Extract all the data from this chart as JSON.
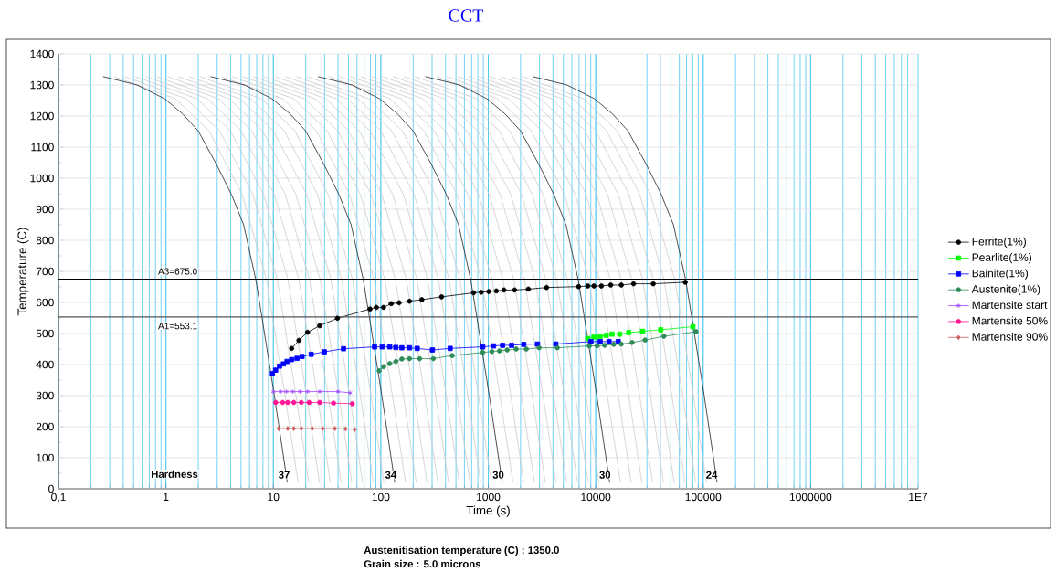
{
  "chart_data": {
    "type": "line",
    "title": "CCT",
    "xlabel": "Time (s)",
    "ylabel": "Temperature (C)",
    "log": "x",
    "grid": true,
    "legend": "right",
    "xlim": [
      0.1,
      10000000
    ],
    "ylim": [
      0,
      1400
    ],
    "xticks": [
      {
        "value": 0.1,
        "label": "0,1"
      },
      1,
      10,
      100,
      1000,
      10000,
      100000,
      1000000,
      {
        "value": 10000000,
        "label": "1E7"
      }
    ],
    "yticks": [
      0,
      100,
      200,
      300,
      400,
      500,
      600,
      700,
      800,
      900,
      1000,
      1100,
      1200,
      1300,
      1400
    ],
    "ref_lines": [
      {
        "axis": "y",
        "value": 675.0,
        "label": "A3=675.0",
        "color": "#000000"
      },
      {
        "axis": "y",
        "value": 553.1,
        "label": "A1=553.1",
        "color": "#555555"
      }
    ],
    "annotations": [
      "Hardness",
      {
        "text": "37",
        "x": 12.6,
        "y": 45
      },
      {
        "text": "34",
        "x": 124,
        "y": 45
      },
      {
        "text": "30",
        "x": 1240,
        "y": 45
      },
      {
        "text": "30",
        "x": 12200,
        "y": 45
      },
      {
        "text": "24",
        "x": 120000,
        "y": 45
      },
      "Austenitisation temperature (C) : 1350.0",
      "Grain size : 5.0 microns"
    ],
    "series": [
      {
        "color": "#cccccc",
        "marker": "none",
        "x": [
          0.327,
          1.22,
          2.51,
          5.12,
          8.65,
          12.8,
          17.0
        ],
        "values": [
          1327,
          1256,
          1153,
          948,
          673,
          302,
          20
        ]
      },
      {
        "color": "#cccccc",
        "marker": "none",
        "x": [
          0.412,
          1.54,
          3.15,
          6.45,
          10.9,
          16.2,
          21.4
        ],
        "values": [
          1327,
          1256,
          1153,
          948,
          673,
          302,
          20
        ]
      },
      {
        "color": "#cccccc",
        "marker": "none",
        "x": [
          0.519,
          1.94,
          3.97,
          8.12,
          13.7,
          20.3,
          26.9
        ],
        "values": [
          1327,
          1256,
          1153,
          948,
          673,
          302,
          20
        ]
      },
      {
        "color": "#cccccc",
        "marker": "none",
        "x": [
          0.653,
          2.44,
          5.0,
          10.2,
          17.3,
          25.6,
          33.9
        ],
        "values": [
          1327,
          1256,
          1153,
          948,
          673,
          302,
          20
        ]
      },
      {
        "color": "#cccccc",
        "marker": "none",
        "x": [
          0.822,
          3.07,
          6.29,
          12.9,
          21.7,
          32.3,
          42.7
        ],
        "values": [
          1327,
          1256,
          1153,
          948,
          673,
          302,
          20
        ]
      },
      {
        "color": "#cccccc",
        "marker": "none",
        "x": [
          1.04,
          3.86,
          7.92,
          16.2,
          27.3,
          40.6,
          53.7
        ],
        "values": [
          1327,
          1256,
          1153,
          948,
          673,
          302,
          20
        ]
      },
      {
        "color": "#cccccc",
        "marker": "none",
        "x": [
          1.3,
          4.86,
          9.97,
          20.4,
          34.4,
          51.1,
          67.7
        ],
        "values": [
          1327,
          1256,
          1153,
          948,
          673,
          302,
          20
        ]
      },
      {
        "color": "#cccccc",
        "marker": "none",
        "x": [
          1.64,
          6.12,
          12.6,
          25.7,
          43.3,
          64.4,
          85.2
        ],
        "values": [
          1327,
          1256,
          1153,
          948,
          673,
          302,
          20
        ]
      },
      {
        "color": "#cccccc",
        "marker": "none",
        "x": [
          2.07,
          7.7,
          15.8,
          32.3,
          54.6,
          81.0,
          107
        ],
        "values": [
          1327,
          1256,
          1153,
          948,
          673,
          302,
          20
        ]
      },
      {
        "color": "#cccccc",
        "marker": "none",
        "x": [
          3.27,
          12.2,
          25.1,
          51.2,
          86.5,
          128,
          170
        ],
        "values": [
          1327,
          1256,
          1153,
          948,
          673,
          302,
          20
        ]
      },
      {
        "color": "#cccccc",
        "marker": "none",
        "x": [
          4.12,
          15.4,
          31.5,
          64.5,
          109,
          162,
          214
        ],
        "values": [
          1327,
          1256,
          1153,
          948,
          673,
          302,
          20
        ]
      },
      {
        "color": "#cccccc",
        "marker": "none",
        "x": [
          5.19,
          19.4,
          39.7,
          81.2,
          137,
          203,
          269
        ],
        "values": [
          1327,
          1256,
          1153,
          948,
          673,
          302,
          20
        ]
      },
      {
        "color": "#cccccc",
        "marker": "none",
        "x": [
          6.53,
          24.4,
          50.0,
          102,
          173,
          256,
          339
        ],
        "values": [
          1327,
          1256,
          1153,
          948,
          673,
          302,
          20
        ]
      },
      {
        "color": "#cccccc",
        "marker": "none",
        "x": [
          8.22,
          30.7,
          62.9,
          129,
          217,
          323,
          427
        ],
        "values": [
          1327,
          1256,
          1153,
          948,
          673,
          302,
          20
        ]
      },
      {
        "color": "#cccccc",
        "marker": "none",
        "x": [
          10.4,
          38.6,
          79.2,
          162,
          273,
          406,
          537
        ],
        "values": [
          1327,
          1256,
          1153,
          948,
          673,
          302,
          20
        ]
      },
      {
        "color": "#cccccc",
        "marker": "none",
        "x": [
          13.0,
          48.6,
          99.7,
          204,
          344,
          511,
          677
        ],
        "values": [
          1327,
          1256,
          1153,
          948,
          673,
          302,
          20
        ]
      },
      {
        "color": "#cccccc",
        "marker": "none",
        "x": [
          16.4,
          61.2,
          126,
          257,
          433,
          644,
          852
        ],
        "values": [
          1327,
          1256,
          1153,
          948,
          673,
          302,
          20
        ]
      },
      {
        "color": "#cccccc",
        "marker": "none",
        "x": [
          20.7,
          77.0,
          158,
          323,
          546,
          810,
          1070
        ],
        "values": [
          1327,
          1256,
          1153,
          948,
          673,
          302,
          20
        ]
      },
      {
        "color": "#cccccc",
        "marker": "none",
        "x": [
          32.7,
          122,
          251,
          512,
          865,
          1280,
          1700
        ],
        "values": [
          1327,
          1256,
          1153,
          948,
          673,
          302,
          20
        ]
      },
      {
        "color": "#cccccc",
        "marker": "none",
        "x": [
          41.2,
          154,
          315,
          645,
          1090,
          1620,
          2140
        ],
        "values": [
          1327,
          1256,
          1153,
          948,
          673,
          302,
          20
        ]
      },
      {
        "color": "#cccccc",
        "marker": "none",
        "x": [
          51.9,
          194,
          397,
          812,
          1370,
          2030,
          2690
        ],
        "values": [
          1327,
          1256,
          1153,
          948,
          673,
          302,
          20
        ]
      },
      {
        "color": "#cccccc",
        "marker": "none",
        "x": [
          65.3,
          244,
          500,
          1020,
          1730,
          2560,
          3390
        ],
        "values": [
          1327,
          1256,
          1153,
          948,
          673,
          302,
          20
        ]
      },
      {
        "color": "#cccccc",
        "marker": "none",
        "x": [
          82.2,
          307,
          629,
          1290,
          2170,
          3230,
          4270
        ],
        "values": [
          1327,
          1256,
          1153,
          948,
          673,
          302,
          20
        ]
      },
      {
        "color": "#cccccc",
        "marker": "none",
        "x": [
          104,
          386,
          792,
          1620,
          2730,
          4060,
          5370
        ],
        "values": [
          1327,
          1256,
          1153,
          948,
          673,
          302,
          20
        ]
      },
      {
        "color": "#cccccc",
        "marker": "none",
        "x": [
          130,
          486,
          997,
          2040,
          3440,
          5110,
          6770
        ],
        "values": [
          1327,
          1256,
          1153,
          948,
          673,
          302,
          20
        ]
      },
      {
        "color": "#cccccc",
        "marker": "none",
        "x": [
          164,
          612,
          1260,
          2570,
          4330,
          6440,
          8520
        ],
        "values": [
          1327,
          1256,
          1153,
          948,
          673,
          302,
          20
        ]
      },
      {
        "color": "#cccccc",
        "marker": "none",
        "x": [
          207,
          770,
          1580,
          3230,
          5460,
          8100,
          10700
        ],
        "values": [
          1327,
          1256,
          1153,
          948,
          673,
          302,
          20
        ]
      },
      {
        "color": "#cccccc",
        "marker": "none",
        "x": [
          327,
          1220,
          2510,
          5120,
          8650,
          12800,
          17000
        ],
        "values": [
          1327,
          1256,
          1153,
          948,
          673,
          302,
          20
        ]
      },
      {
        "color": "#cccccc",
        "marker": "none",
        "x": [
          412,
          1540,
          3150,
          6450,
          10900,
          16200,
          21400
        ],
        "values": [
          1327,
          1256,
          1153,
          948,
          673,
          302,
          20
        ]
      },
      {
        "color": "#cccccc",
        "marker": "none",
        "x": [
          519,
          1940,
          3970,
          8120,
          13700,
          20300,
          26900
        ],
        "values": [
          1327,
          1256,
          1153,
          948,
          673,
          302,
          20
        ]
      },
      {
        "color": "#cccccc",
        "marker": "none",
        "x": [
          653,
          2440,
          5000,
          10200,
          17300,
          25600,
          33900
        ],
        "values": [
          1327,
          1256,
          1153,
          948,
          673,
          302,
          20
        ]
      },
      {
        "color": "#cccccc",
        "marker": "none",
        "x": [
          822,
          3070,
          6290,
          12900,
          21700,
          32300,
          42700
        ],
        "values": [
          1327,
          1256,
          1153,
          948,
          673,
          302,
          20
        ]
      },
      {
        "color": "#cccccc",
        "marker": "none",
        "x": [
          1040,
          3860,
          7920,
          16200,
          27300,
          40600,
          53700
        ],
        "values": [
          1327,
          1256,
          1153,
          948,
          673,
          302,
          20
        ]
      },
      {
        "color": "#cccccc",
        "marker": "none",
        "x": [
          1300,
          4860,
          9970,
          20400,
          34400,
          51100,
          67700
        ],
        "values": [
          1327,
          1256,
          1153,
          948,
          673,
          302,
          20
        ]
      },
      {
        "color": "#cccccc",
        "marker": "none",
        "x": [
          1640,
          6120,
          12600,
          25700,
          43300,
          64400,
          85200
        ],
        "values": [
          1327,
          1256,
          1153,
          948,
          673,
          302,
          20
        ]
      },
      {
        "color": "#cccccc",
        "marker": "none",
        "x": [
          2070,
          7700,
          15800,
          32300,
          54600,
          81000,
          107000
        ],
        "values": [
          1327,
          1256,
          1153,
          948,
          673,
          302,
          20
        ]
      },
      {
        "color": "#222222",
        "marker": "none",
        "x": [
          0.26,
          0.54,
          0.97,
          1.43,
          1.99,
          2.94,
          4.07,
          5.29,
          6.87,
          7.8,
          10.2,
          13.5
        ],
        "values": [
          1327,
          1300,
          1256,
          1207,
          1153,
          1046,
          948,
          850,
          673,
          556,
          302,
          20
        ]
      },
      {
        "color": "#222222",
        "marker": "none",
        "x": [
          2.6,
          5.4,
          9.7,
          14.3,
          19.9,
          29.4,
          40.7,
          52.9,
          68.7,
          78,
          102,
          135
        ],
        "values": [
          1327,
          1300,
          1256,
          1207,
          1153,
          1046,
          948,
          850,
          673,
          556,
          302,
          20
        ]
      },
      {
        "color": "#222222",
        "marker": "none",
        "x": [
          26,
          54,
          97,
          143,
          199,
          294,
          407,
          529,
          687,
          780,
          1020,
          1350
        ],
        "values": [
          1327,
          1300,
          1256,
          1207,
          1153,
          1046,
          948,
          850,
          673,
          556,
          302,
          20
        ]
      },
      {
        "color": "#222222",
        "marker": "none",
        "x": [
          260,
          540,
          970,
          1430,
          1990,
          2940,
          4070,
          5290,
          6870,
          7800,
          10200,
          13500
        ],
        "values": [
          1327,
          1300,
          1256,
          1207,
          1153,
          1046,
          948,
          850,
          673,
          556,
          302,
          20
        ]
      },
      {
        "color": "#222222",
        "marker": "none",
        "x": [
          2600,
          5400,
          9700,
          14300,
          19900,
          29400,
          40700,
          52900,
          68700,
          78000,
          102000,
          135000
        ],
        "values": [
          1327,
          1300,
          1256,
          1207,
          1153,
          1046,
          948,
          850,
          673,
          556,
          302,
          20
        ]
      },
      {
        "name": "Ferrite(1%)",
        "color": "#000000",
        "marker": "circle",
        "x": [
          14.8,
          17.3,
          20.8,
          27.0,
          39.5,
          79.4,
          90.6,
          106,
          125,
          148,
          185,
          241,
          368,
          730,
          860,
          1010,
          1190,
          1400,
          1760,
          2360,
          3490,
          6930,
          8430,
          9620,
          11300,
          13800,
          17300,
          22500,
          34300,
          68100
        ],
        "values": [
          452,
          478,
          504,
          525,
          549,
          579,
          584,
          584,
          596,
          599,
          604,
          609,
          618,
          631,
          633,
          635,
          637,
          640,
          640,
          643,
          648,
          651,
          653,
          653,
          653,
          656,
          656,
          660,
          660,
          665
        ]
      },
      {
        "name": "Pearlite(1%)",
        "color": "#00ff00",
        "marker": "square",
        "x": [
          8430,
          9620,
          11000,
          12500,
          14200,
          16700,
          20300,
          27300,
          40300,
          80200
        ],
        "values": [
          484,
          488,
          491,
          494,
          498,
          498,
          503,
          507,
          512,
          522
        ]
      },
      {
        "name": "Bainite(1%)",
        "color": "#0000ff",
        "marker": "square",
        "x": [
          9.8,
          10.5,
          11.4,
          12.4,
          13.4,
          14.8,
          16.6,
          18.5,
          22.5,
          29.8,
          45,
          87.5,
          103,
          121,
          138,
          157,
          185,
          218,
          302,
          442,
          888,
          1120,
          1360,
          1650,
          2140,
          2870,
          4250,
          9020,
          11000,
          13300,
          16200
        ],
        "values": [
          371,
          382,
          395,
          402,
          410,
          416,
          420,
          426,
          433,
          441,
          451,
          457,
          457,
          457,
          455,
          454,
          454,
          452,
          447,
          452,
          457,
          460,
          462,
          462,
          465,
          466,
          466,
          474,
          474,
          474,
          474
        ]
      },
      {
        "name": "Austenite(1%)",
        "color": "#2e8b57",
        "marker": "circle",
        "x": [
          96.6,
          106,
          121,
          138,
          157,
          185,
          230,
          308,
          462,
          888,
          1080,
          1270,
          1500,
          1820,
          2260,
          2970,
          4390,
          8710,
          10300,
          12100,
          14700,
          17300,
          21800,
          28800,
          43100,
          85700
        ],
        "values": [
          380,
          393,
          403,
          410,
          418,
          419,
          419,
          419,
          429,
          439,
          442,
          444,
          447,
          450,
          450,
          454,
          454,
          460,
          460,
          462,
          465,
          466,
          471,
          479,
          491,
          506
        ]
      },
      {
        "name": "Martensite start",
        "color": "#a040ff",
        "marker": "cross",
        "x": [
          10,
          11.7,
          13.2,
          15.2,
          17.7,
          20.8,
          27.0,
          40.0,
          51.9
        ],
        "values": [
          313,
          313,
          313,
          313,
          313,
          313,
          313,
          313,
          309
        ]
      },
      {
        "name": "Martensite 50%",
        "color": "#ff1493",
        "marker": "circle",
        "x": [
          10.5,
          12.2,
          13.6,
          15.5,
          18.2,
          21.5,
          27.0,
          36.3,
          54.3
        ],
        "values": [
          278,
          278,
          278,
          278,
          278,
          278,
          278,
          276,
          274
        ]
      },
      {
        "name": "Martensite 90%",
        "color": "#cd5c5c",
        "marker": "diamond",
        "x": [
          11.2,
          13.6,
          15.5,
          18.2,
          23.0,
          28.8,
          37.4,
          47.0,
          57.2
        ],
        "values": [
          194,
          194,
          194,
          194,
          194,
          194,
          194,
          193,
          191
        ]
      }
    ]
  }
}
